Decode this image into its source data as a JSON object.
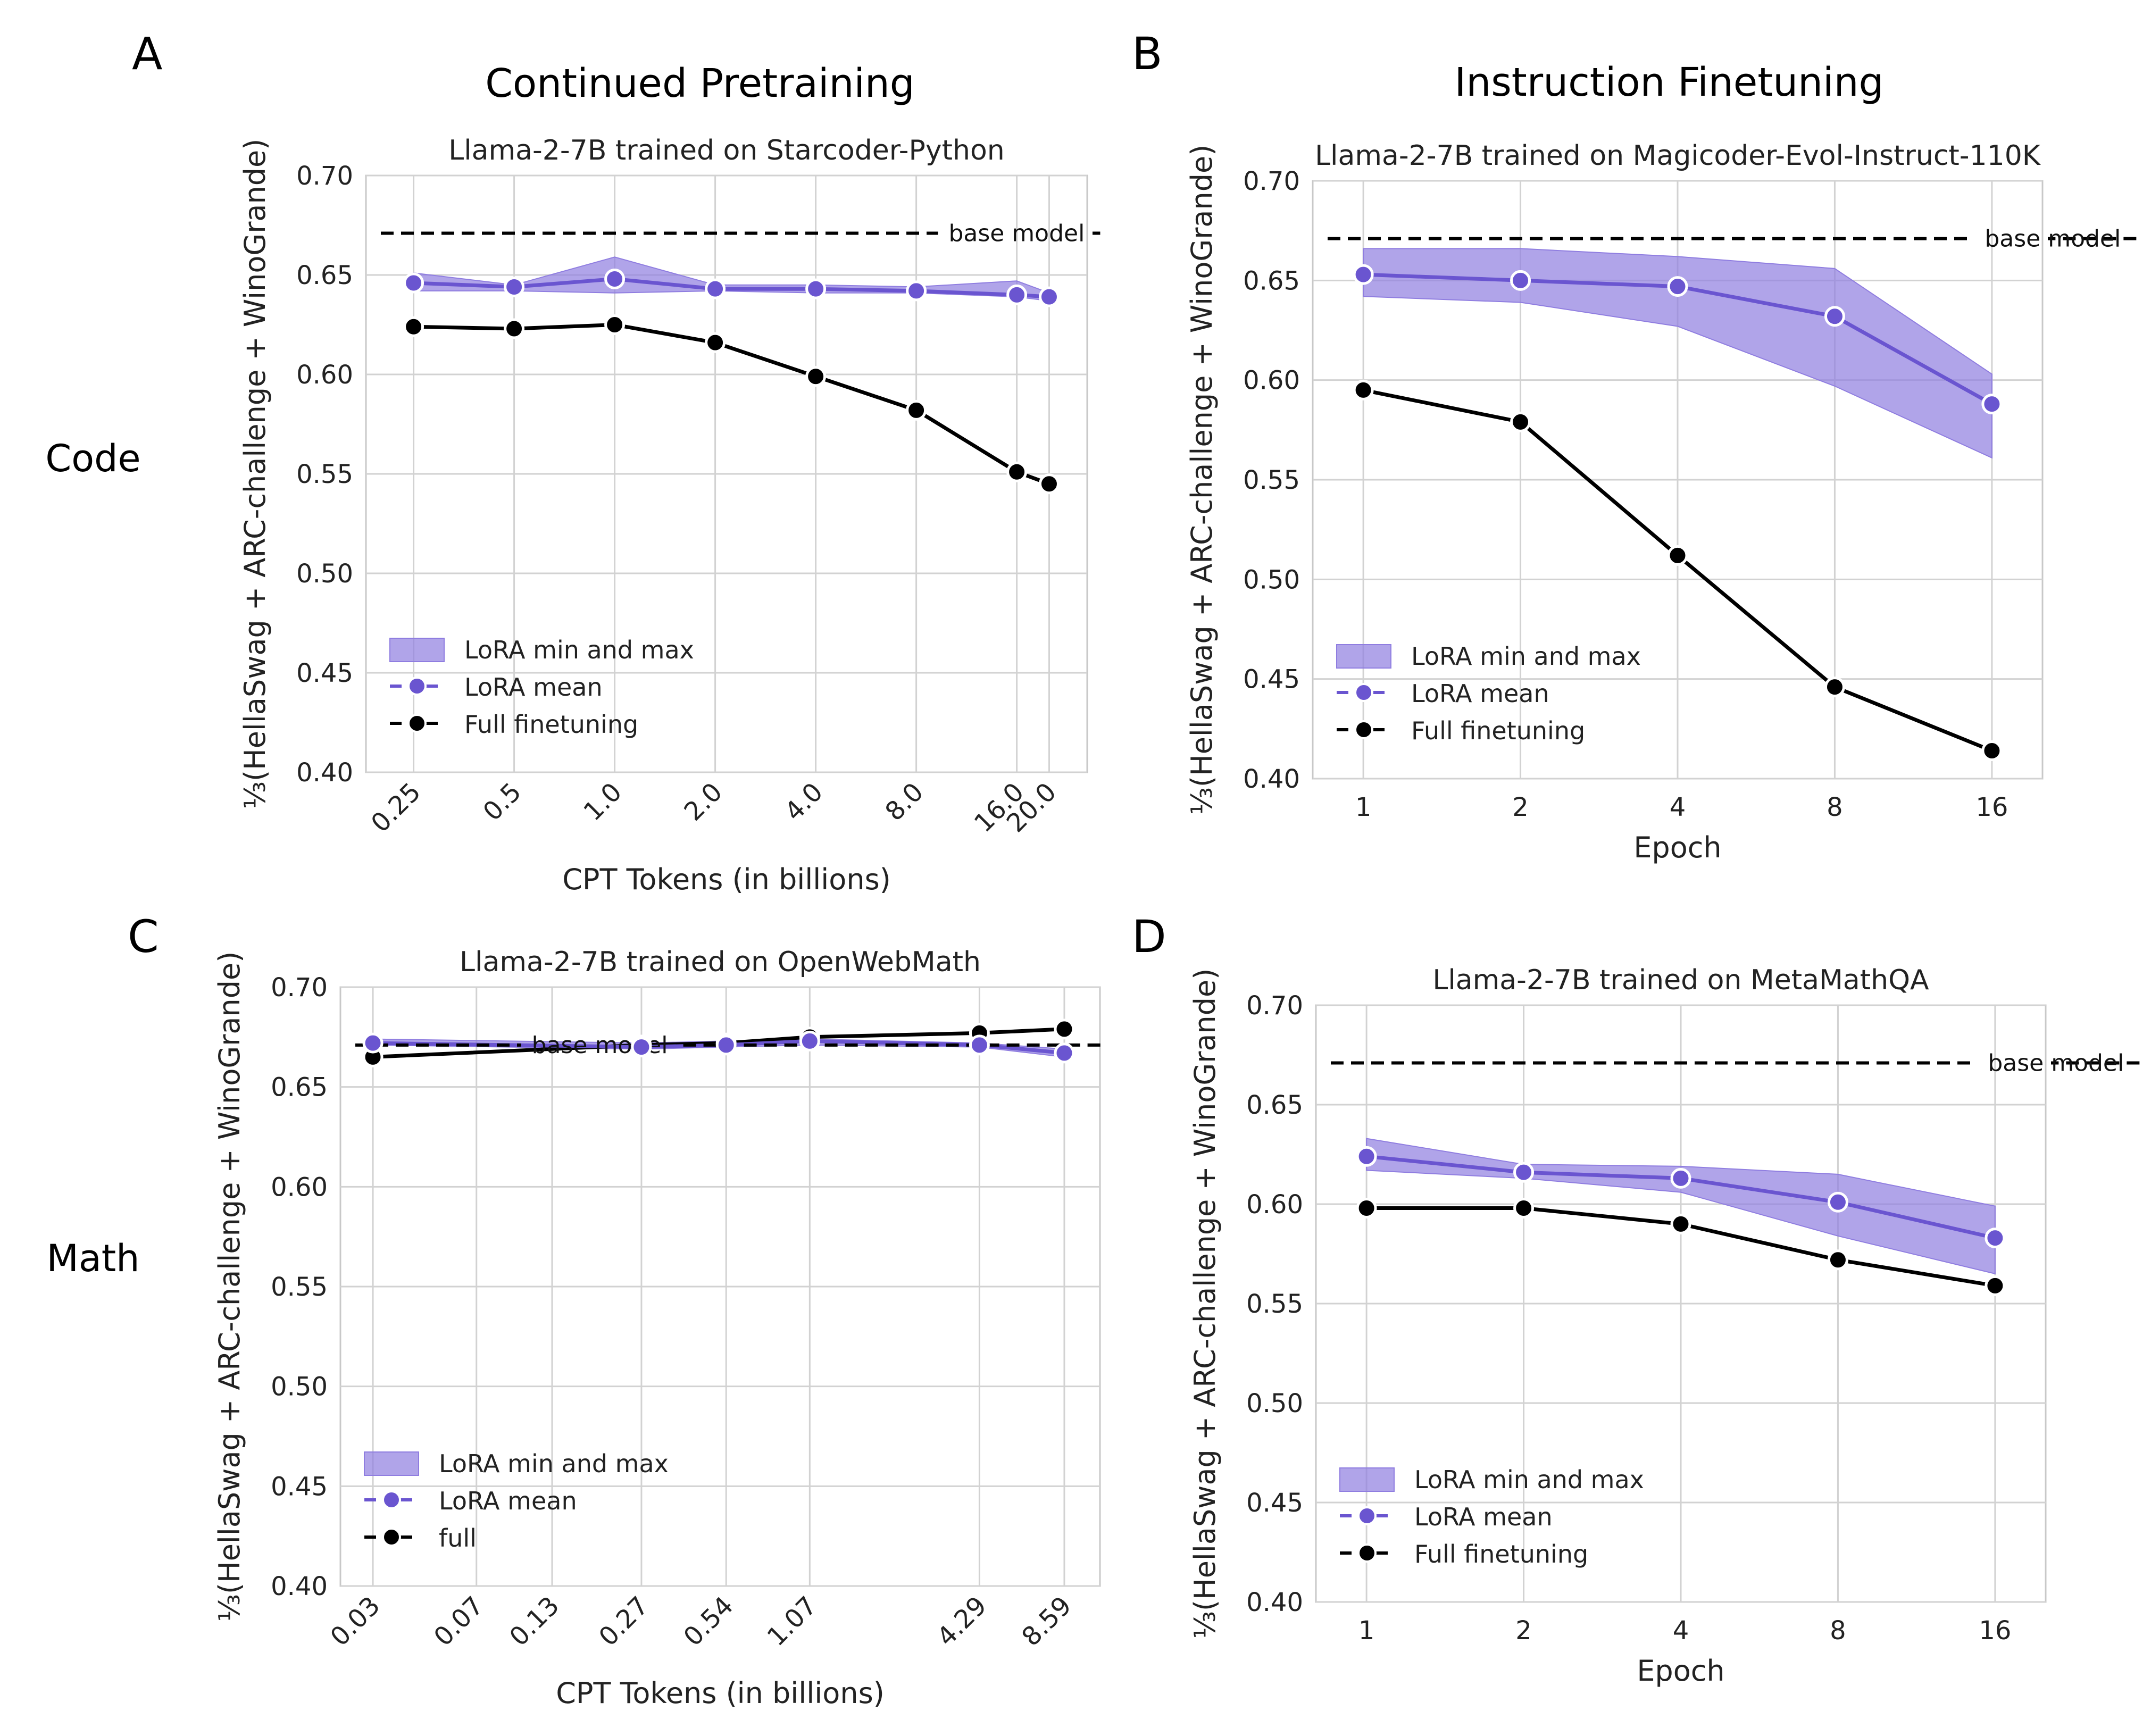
{
  "figure": {
    "col_titles": [
      "Continued Pretraining",
      "Instruction Finetuning"
    ],
    "row_labels": [
      "Code",
      "Math"
    ]
  },
  "colors": {
    "lora": "#6a55d0",
    "lora_fill": "#8f7de0",
    "full": "#000000",
    "grid": "#d2d2d2",
    "frame": "#c8c8c8"
  },
  "chart_data": [
    {
      "id": "A",
      "panel_label": "A",
      "type": "line",
      "title": "Llama-2-7B trained on Starcoder-Python",
      "xlabel": "CPT Tokens (in billions)",
      "ylabel": "⅓(HellaSwag + ARC-challenge + WinoGrande)",
      "x_scale": "log",
      "x": [
        0.25,
        0.5,
        1.0,
        2.0,
        4.0,
        8.0,
        16.0,
        20.0
      ],
      "x_tick_labels": [
        "0.25",
        "0.5",
        "1.0",
        "2.0",
        "4.0",
        "8.0",
        "16.0",
        "20.0"
      ],
      "x_tick_rotation": -45,
      "x_range": [
        0.18,
        26
      ],
      "ylim": [
        0.4,
        0.7
      ],
      "yticks": [
        "0.40",
        "0.45",
        "0.50",
        "0.55",
        "0.60",
        "0.65",
        "0.70"
      ],
      "base_model": 0.671,
      "base_label": "base model",
      "base_label_x": 10.0,
      "series": [
        {
          "name": "LoRA mean",
          "values": [
            0.646,
            0.644,
            0.648,
            0.643,
            0.643,
            0.642,
            0.64,
            0.639
          ]
        },
        {
          "name": "Full finetuning",
          "values": [
            0.624,
            0.623,
            0.625,
            0.616,
            0.599,
            0.582,
            0.551,
            0.545
          ]
        }
      ],
      "band_min": [
        0.642,
        0.642,
        0.641,
        0.642,
        0.641,
        0.641,
        0.639,
        0.637
      ],
      "band_max": [
        0.651,
        0.645,
        0.659,
        0.645,
        0.645,
        0.644,
        0.647,
        0.641
      ],
      "legend": [
        "LoRA min and max",
        "LoRA mean",
        "Full finetuning"
      ],
      "legend_position": "lower-left"
    },
    {
      "id": "B",
      "panel_label": "B",
      "type": "line",
      "title": "Llama-2-7B trained on Magicoder-Evol-Instruct-110K",
      "xlabel": "Epoch",
      "ylabel": "⅓(HellaSwag + ARC-challenge + WinoGrande)",
      "x_scale": "log",
      "x": [
        1,
        2,
        4,
        8,
        16
      ],
      "x_tick_labels": [
        "1",
        "2",
        "4",
        "8",
        "16"
      ],
      "x_tick_rotation": 0,
      "x_range": [
        0.8,
        20
      ],
      "ylim": [
        0.4,
        0.7
      ],
      "yticks": [
        "0.40",
        "0.45",
        "0.50",
        "0.55",
        "0.60",
        "0.65",
        "0.70"
      ],
      "base_model": 0.671,
      "base_label": "base model",
      "base_label_x": 15.5,
      "series": [
        {
          "name": "LoRA mean",
          "values": [
            0.653,
            0.65,
            0.647,
            0.632,
            0.588
          ]
        },
        {
          "name": "Full finetuning",
          "values": [
            0.595,
            0.579,
            0.512,
            0.446,
            0.414
          ]
        }
      ],
      "band_min": [
        0.642,
        0.639,
        0.627,
        0.597,
        0.561
      ],
      "band_max": [
        0.666,
        0.666,
        0.662,
        0.656,
        0.603
      ],
      "legend": [
        "LoRA min and max",
        "LoRA mean",
        "Full finetuning"
      ],
      "legend_position": "lower-left"
    },
    {
      "id": "C",
      "panel_label": "C",
      "type": "line",
      "title": "Llama-2-7B trained on OpenWebMath",
      "xlabel": "CPT Tokens (in billions)",
      "ylabel": "⅓(HellaSwag + ARC-challenge + WinoGrande)",
      "x_scale": "log",
      "x": [
        0.03,
        0.07,
        0.13,
        0.27,
        0.54,
        1.07,
        4.29,
        8.59
      ],
      "x_tick_labels": [
        "0.03",
        "0.07",
        "0.13",
        "0.27",
        "0.54",
        "1.07",
        "4.29",
        "8.59"
      ],
      "x_tick_rotation": -45,
      "x_range": [
        0.023,
        11.5
      ],
      "ylim": [
        0.4,
        0.7
      ],
      "yticks": [
        "0.40",
        "0.45",
        "0.50",
        "0.55",
        "0.60",
        "0.65",
        "0.70"
      ],
      "base_model": 0.671,
      "base_label": "base model",
      "base_label_x": 0.11,
      "series": [
        {
          "name": "LoRA mean",
          "values": [
            0.672,
            null,
            null,
            0.67,
            0.671,
            0.673,
            0.671,
            0.667
          ]
        },
        {
          "name": "full",
          "values": [
            0.665,
            null,
            null,
            0.671,
            0.672,
            0.675,
            0.677,
            0.679
          ]
        }
      ],
      "band_min": [
        0.671,
        null,
        null,
        0.669,
        0.67,
        0.671,
        0.67,
        0.665
      ],
      "band_max": [
        0.674,
        null,
        null,
        0.672,
        0.673,
        0.674,
        0.672,
        0.669
      ],
      "legend": [
        "LoRA min and max",
        "LoRA mean",
        "full"
      ],
      "legend_position": "lower-left"
    },
    {
      "id": "D",
      "panel_label": "D",
      "type": "line",
      "title": "Llama-2-7B trained on MetaMathQA",
      "xlabel": "Epoch",
      "ylabel": "⅓(HellaSwag + ARC-challenge + WinoGrande)",
      "x_scale": "log",
      "x": [
        1,
        2,
        4,
        8,
        16
      ],
      "x_tick_labels": [
        "1",
        "2",
        "4",
        "8",
        "16"
      ],
      "x_tick_rotation": 0,
      "x_range": [
        0.8,
        20
      ],
      "ylim": [
        0.4,
        0.7
      ],
      "yticks": [
        "0.40",
        "0.45",
        "0.50",
        "0.55",
        "0.60",
        "0.65",
        "0.70"
      ],
      "base_model": 0.671,
      "base_label": "base model",
      "base_label_x": 15.5,
      "series": [
        {
          "name": "LoRA mean",
          "values": [
            0.624,
            0.616,
            0.613,
            0.601,
            0.583
          ]
        },
        {
          "name": "Full finetuning",
          "values": [
            0.598,
            0.598,
            0.59,
            0.572,
            0.559
          ]
        }
      ],
      "band_min": [
        0.617,
        0.613,
        0.606,
        0.584,
        0.565
      ],
      "band_max": [
        0.633,
        0.62,
        0.619,
        0.615,
        0.599
      ],
      "legend": [
        "LoRA min and max",
        "LoRA mean",
        "Full finetuning"
      ],
      "legend_position": "lower-left"
    }
  ]
}
